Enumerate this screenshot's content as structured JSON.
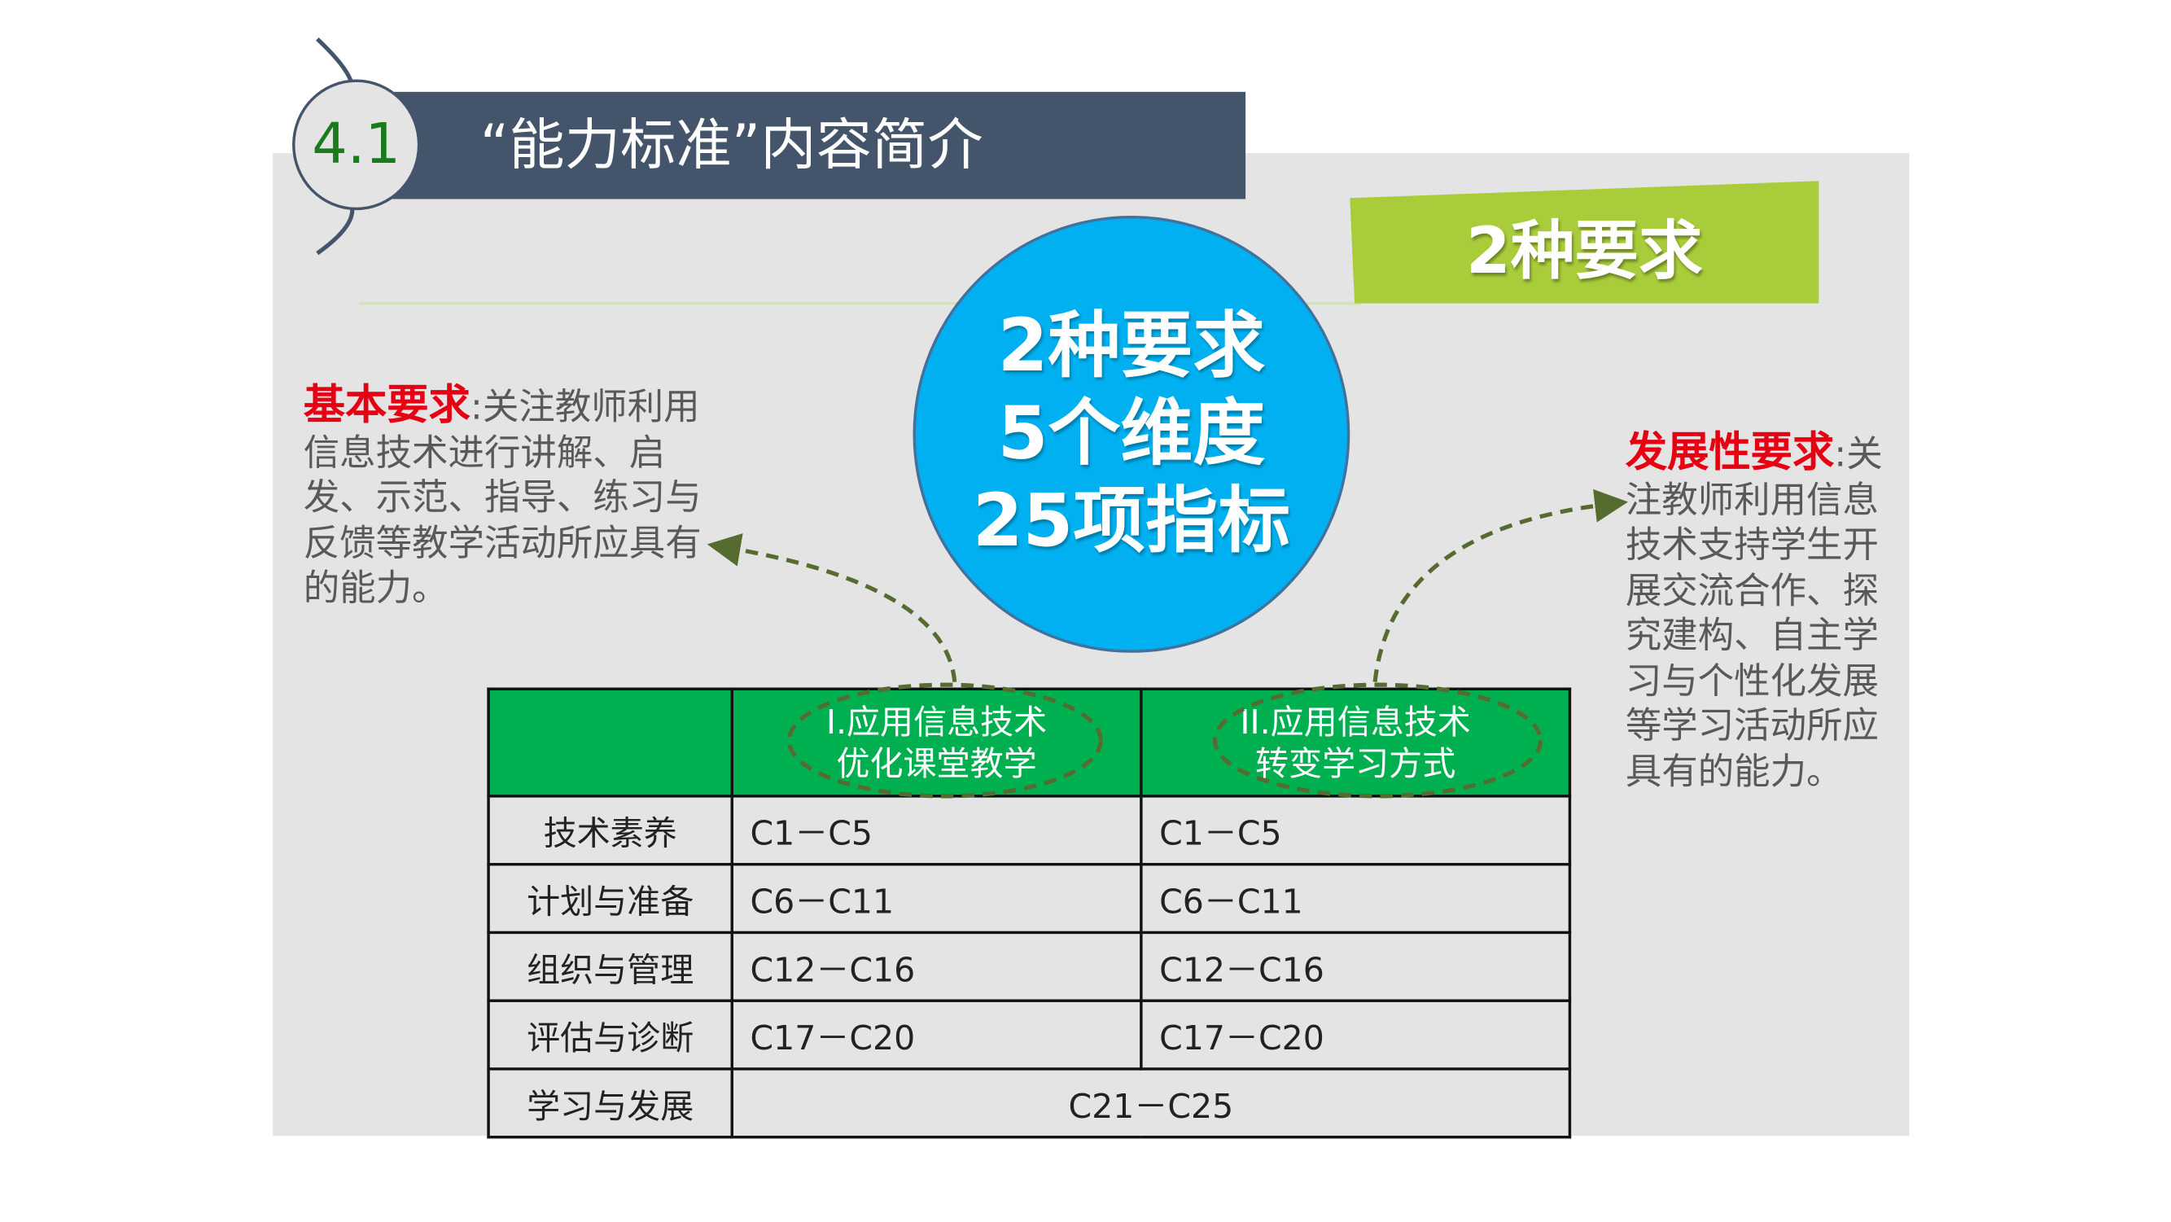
{
  "header": {
    "section_number": "4.1",
    "title": "“能力标准”内容简介"
  },
  "tag": "2种要求",
  "circle": {
    "lines": [
      "2种要求",
      "5个维度",
      "25项指标"
    ]
  },
  "basic": {
    "label": "基本要求",
    "colon": ":",
    "text": "关注教师利用信息技术进行讲解、启发、示范、指导、练习与反馈等教学活动所应具有的能力。"
  },
  "development": {
    "label": "发展性要求",
    "colon": ":",
    "text": "关注教师利用信息技术支持学生开展交流合作、探究建构、自主学习与个性化发展等学习活动所应具有的能力。"
  },
  "table": {
    "columns": [
      {
        "line1": "I.应用信息技术",
        "line2": "优化课堂教学"
      },
      {
        "line1": "II.应用信息技术",
        "line2": "转变学习方式"
      }
    ],
    "rows": [
      {
        "dimension": "技术素养",
        "col1": "C1－C5",
        "col2": "C1－C5"
      },
      {
        "dimension": "计划与准备",
        "col1": "C6－C11",
        "col2": "C6－C11"
      },
      {
        "dimension": "组织与管理",
        "col1": "C12－C16",
        "col2": "C12－C16"
      },
      {
        "dimension": "评估与诊断",
        "col1": "C17－C20",
        "col2": "C17－C20"
      },
      {
        "dimension": "学习与发展",
        "merged": "C21－C25"
      }
    ]
  },
  "colors": {
    "title_bar": "#44546a",
    "circle": "#00b0f0",
    "tag": "#a9cd3a",
    "table_header": "#00b050",
    "highlight": "#e60012",
    "section_number": "#1b7a1b"
  }
}
